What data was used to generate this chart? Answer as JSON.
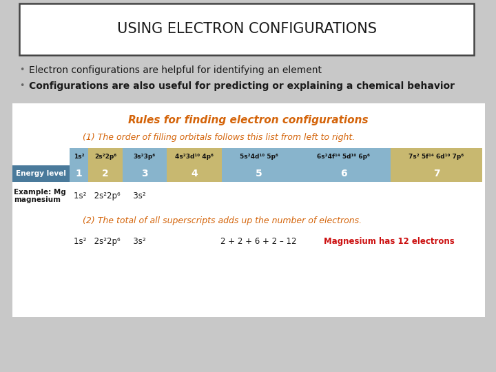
{
  "title": "USING ELECTRON CONFIGURATIONS",
  "bullet1": "Electron configurations are helpful for identifying an element",
  "bullet2": "Configurations are also useful for predicting or explaining a chemical behavior",
  "slide_bg": "#c8c8c8",
  "white": "#ffffff",
  "table_bg": "#f8f4e8",
  "orange_color": "#d4640a",
  "red_color": "#cc1111",
  "dark_text": "#1a1a1a",
  "rule_title": "Rules for finding electron configurations",
  "rule1": "(1) The order of filling orbitals follows this list from left to right.",
  "rule2": "(2) The total of all superscripts adds up the number of electrons.",
  "energy_label": "Energy level",
  "energy_levels": [
    "1",
    "2",
    "3",
    "4",
    "5",
    "6",
    "7"
  ],
  "col_colors_orb": [
    "#88b4cc",
    "#c8b870",
    "#88b4cc",
    "#c8b870",
    "#88b4cc",
    "#88b4cc",
    "#c8b870"
  ],
  "col_colors_eng": [
    "#88b4cc",
    "#c8b870",
    "#88b4cc",
    "#c8b870",
    "#88b4cc",
    "#88b4cc",
    "#c8b870"
  ],
  "energy_label_bg": "#4a7a9b",
  "orbital_texts": [
    "1s²",
    "2s²2p⁶",
    "3s²3p⁶",
    "4s²3d¹⁰ 4p⁶",
    "5s²4d¹⁰ 5p⁶",
    "6s²4f¹⁴ 5d¹⁰ 6p⁶",
    "7s² 5f¹⁴ 6d¹⁰ 7p⁶"
  ],
  "example_label": "Example: Mg\nmagnesium",
  "example_config": "1s²   2s²2p⁶     3s²",
  "bottom_config": "1s²   2s²2p⁶     3s²",
  "bottom_math": "2 + 2 + 6 + 2 – 12",
  "bottom_note": "Magnesium has 12 electrons"
}
